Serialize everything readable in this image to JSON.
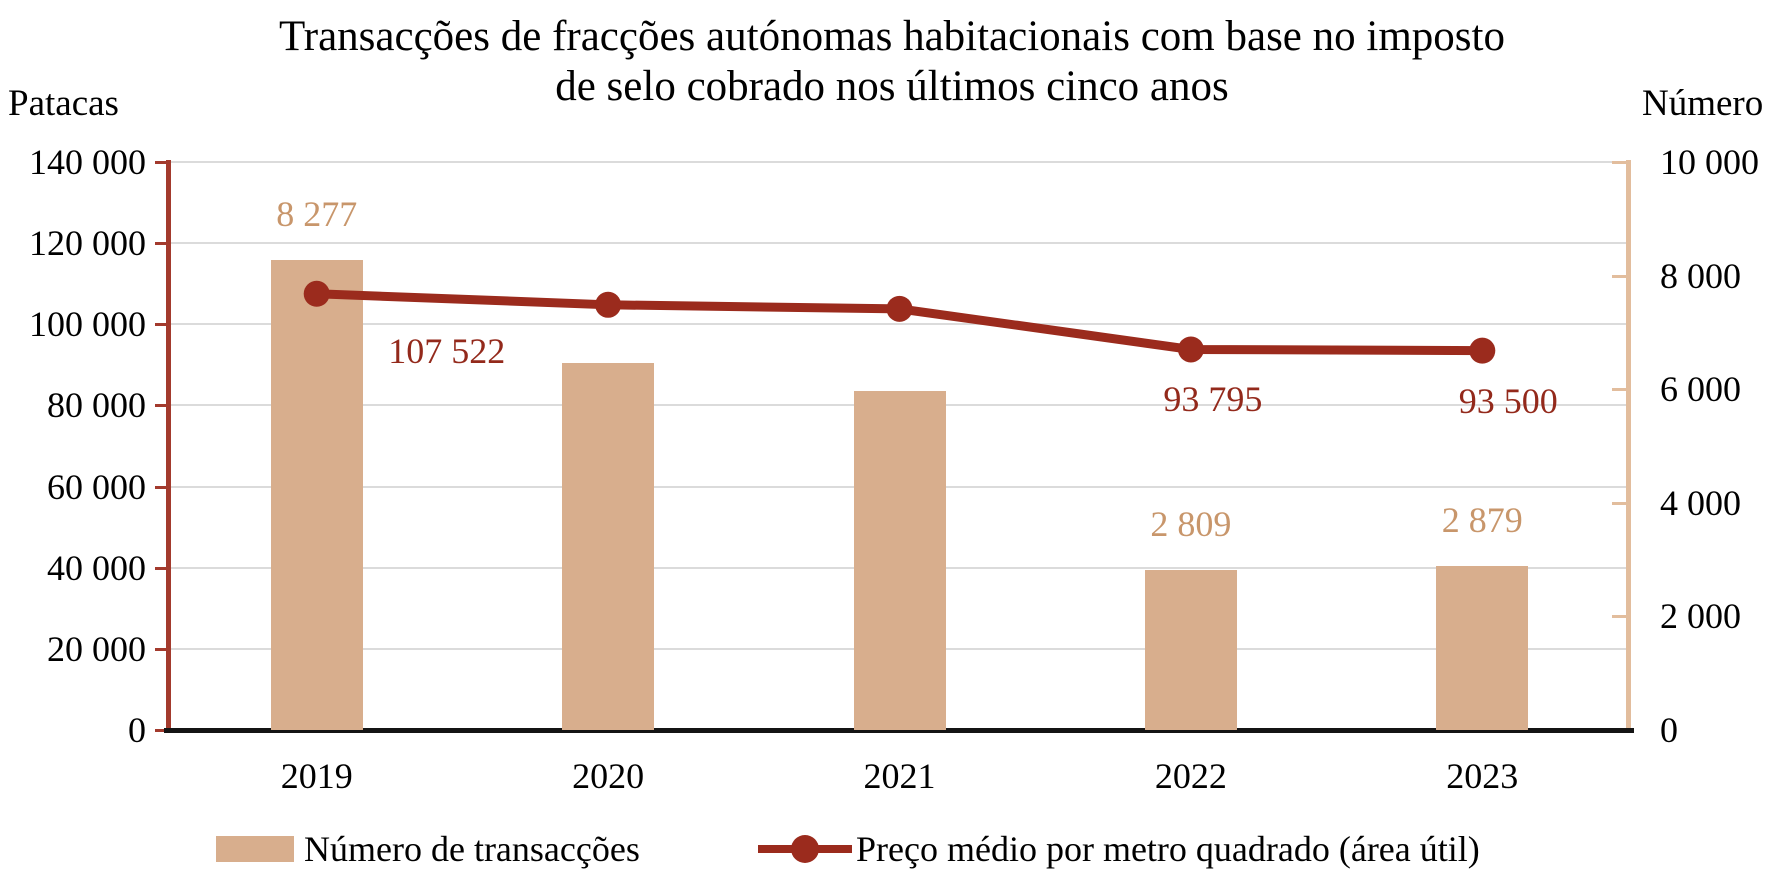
{
  "chart_data": {
    "type": "combo_bar_line",
    "title": "Transacções de fracções autónomas habitacionais com base no imposto de selo cobrado nos últimos cinco anos",
    "title_lines": [
      "Transacções de fracções autónomas habitacionais com base no imposto",
      "de selo cobrado nos últimos cinco anos"
    ],
    "categories": [
      "2019",
      "2020",
      "2021",
      "2022",
      "2023"
    ],
    "left_axis": {
      "title": "Patacas",
      "min": 0,
      "max": 140000,
      "tick_values": [
        140000,
        120000,
        100000,
        80000,
        60000,
        40000,
        20000,
        0
      ],
      "tick_labels": [
        "140 000",
        "120 000",
        "100 000",
        "80 000",
        "60 000",
        "40 000",
        "20 000",
        "0"
      ]
    },
    "right_axis": {
      "title": "Número",
      "min": 0,
      "max": 10000,
      "tick_values": [
        10000,
        8000,
        6000,
        4000,
        2000,
        0
      ],
      "tick_labels": [
        "10 000",
        "8 000",
        "6 000",
        "4 000",
        "2 000",
        "0"
      ]
    },
    "grid": "horizontal",
    "legend_position": "bottom",
    "series": [
      {
        "name": "Número de transacções",
        "type": "bar",
        "axis": "right",
        "color": "#D8AE8D",
        "label_color": "#C8966B",
        "values": [
          8277,
          6470,
          5970,
          2809,
          2879
        ],
        "data_labels": [
          "8 277",
          "",
          "",
          "2 809",
          "2 879"
        ]
      },
      {
        "name": "Preço médio por metro quadrado (área útil)",
        "type": "line",
        "axis": "left",
        "color": "#9B2B1D",
        "label_color": "#93291B",
        "values": [
          107522,
          104800,
          103800,
          93795,
          93500
        ],
        "data_labels": [
          "107 522",
          "",
          "",
          "93 795",
          "93 500"
        ],
        "label_offsets": [
          [
            130,
            57
          ],
          null,
          null,
          [
            22,
            50
          ],
          [
            26,
            50
          ]
        ]
      }
    ],
    "colors": {
      "grid": "#DBDBDB",
      "left_axis_line": "#A33A2D",
      "right_axis_line": "#E2BD9D",
      "x_axis_line": "#141414",
      "text": "#000000"
    }
  }
}
